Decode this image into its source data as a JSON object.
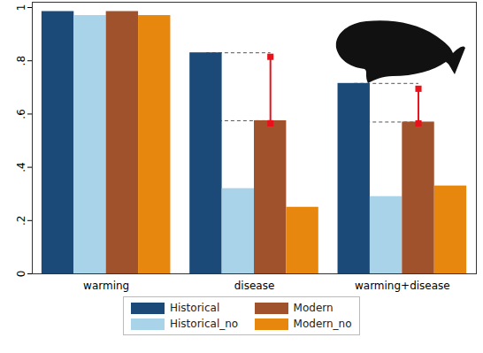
{
  "chart_data": {
    "type": "bar",
    "categories": [
      "warming",
      "disease",
      "warming+disease"
    ],
    "series": [
      {
        "name": "Historical",
        "color": "#1b4a78",
        "values": [
          0.985,
          0.83,
          0.715
        ]
      },
      {
        "name": "Historical_no",
        "color": "#a8d3e8",
        "values": [
          0.97,
          0.32,
          0.29
        ]
      },
      {
        "name": "Modern",
        "color": "#a0522d",
        "values": [
          0.985,
          0.575,
          0.57
        ]
      },
      {
        "name": "Modern_no",
        "color": "#e8870e",
        "values": [
          0.97,
          0.25,
          0.33
        ]
      }
    ],
    "differences": [
      {
        "category": "disease",
        "low": 0.565,
        "high": 0.815,
        "color": "#e8121b"
      },
      {
        "category": "warming+disease",
        "low": 0.565,
        "high": 0.695,
        "color": "#e8121b"
      }
    ],
    "ylim": [
      0,
      1.02
    ],
    "yticks": [
      0,
      {
        "value": 0.2,
        "label": ".2"
      },
      {
        "value": 0.4,
        "label": ".4"
      },
      {
        "value": 0.6,
        "label": ".6"
      },
      {
        "value": 0.8,
        "label": ".8"
      },
      1
    ],
    "grid": false,
    "legend": "bottom"
  }
}
